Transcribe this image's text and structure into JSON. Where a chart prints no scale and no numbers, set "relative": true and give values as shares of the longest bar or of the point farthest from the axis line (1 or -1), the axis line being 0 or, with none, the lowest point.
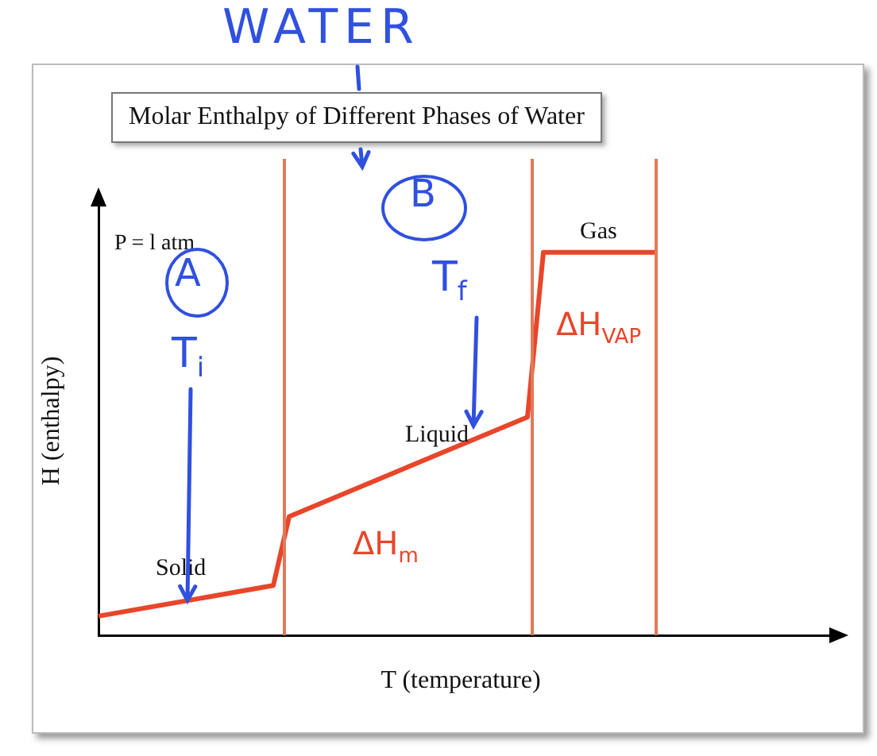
{
  "chart_data": {
    "type": "line",
    "title": "Molar Enthalpy of Different Phases of Water",
    "xlabel": "T (temperature)",
    "ylabel": "H (enthalpy)",
    "relative": true,
    "marker": "none",
    "categories": [
      null,
      null,
      null,
      null,
      null,
      null,
      null,
      null,
      null,
      null,
      null,
      null,
      null,
      null,
      null,
      null,
      null,
      null,
      null,
      null,
      null,
      null,
      null,
      null,
      null,
      null,
      null,
      null,
      null,
      null,
      null,
      null,
      null,
      null,
      null,
      null,
      null,
      null,
      null,
      null,
      null,
      null,
      null,
      null,
      null,
      null,
      null
    ],
    "series": [
      {
        "color": "#e8462a",
        "values": [
          0.05,
          null,
          null,
          null,
          null,
          null,
          null,
          null,
          null,
          null,
          null,
          0.13,
          0.31,
          null,
          null,
          null,
          null,
          null,
          null,
          null,
          null,
          null,
          null,
          null,
          null,
          null,
          null,
          0.57,
          1,
          null,
          null,
          null,
          null,
          null,
          null,
          1,
          null,
          null,
          null,
          null,
          null,
          null,
          null,
          null,
          null,
          null,
          null
        ]
      }
    ],
    "annotations": [
      "WATER",
      "A",
      "B",
      "P = l atm",
      "T$_{i}$",
      "T$_{f}$",
      "Solid",
      "Liquid",
      "Gas",
      "ΔH$_{m}$",
      "ΔH$_{VAP}$"
    ]
  }
}
